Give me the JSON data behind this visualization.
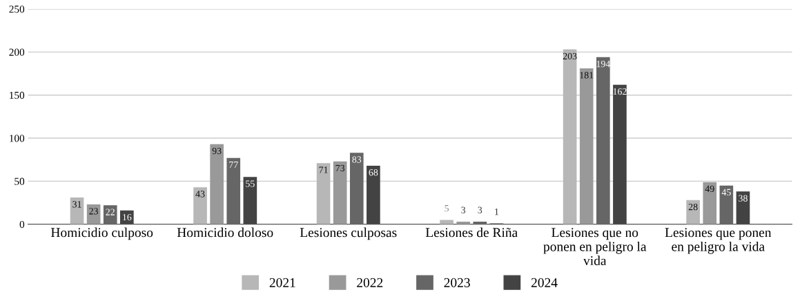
{
  "chart_data": {
    "type": "bar",
    "categories": [
      "Homicidio culposo",
      "Homicidio doloso",
      "Lesiones culposas",
      "Lesiones de Riña",
      "Lesiones que no\nponen en peligro la\nvida",
      "Lesiones que ponen\nen peligro la vida"
    ],
    "series": [
      {
        "name": "2021",
        "color": "#b7b7b7",
        "values": [
          31,
          43,
          71,
          5,
          203,
          28
        ]
      },
      {
        "name": "2022",
        "color": "#999999",
        "values": [
          23,
          93,
          73,
          3,
          181,
          49
        ]
      },
      {
        "name": "2023",
        "color": "#666666",
        "values": [
          22,
          77,
          83,
          3,
          194,
          45
        ]
      },
      {
        "name": "2024",
        "color": "#434343",
        "values": [
          16,
          55,
          68,
          1,
          162,
          38
        ]
      }
    ],
    "ylim": [
      0,
      250
    ],
    "yticks": [
      0,
      50,
      100,
      150,
      200,
      250
    ],
    "grid": "y",
    "legend": "bottom",
    "data_labels": true
  }
}
